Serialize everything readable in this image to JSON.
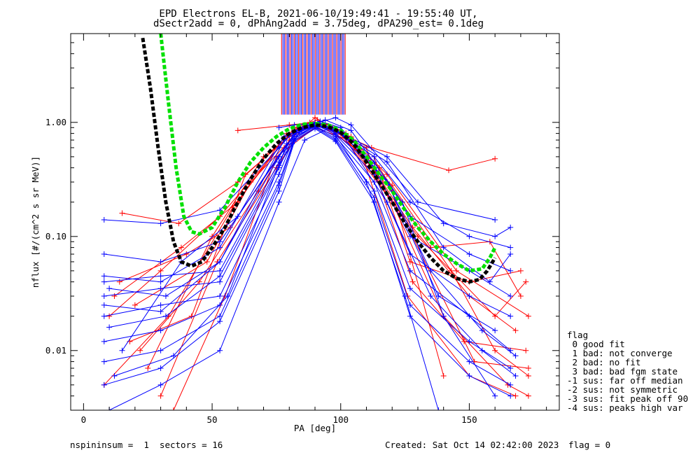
{
  "header": {
    "title_line1": "EPD Electrons EL-B, 2021-06-10/19:49:41 - 19:55:40 UT,",
    "title_line2": "dSectr2add = 0, dPhAng2add = 3.75deg, dPA290_est=   0.1deg"
  },
  "footer": {
    "left": "nspininsum =  1  sectors = 16",
    "center": "Created: Sat Oct 14 02:42:00 2023",
    "right": "flag = 0"
  },
  "flag_legend": {
    "title": "flag",
    "items": [
      " 0 good fit",
      " 1 bad: not converge",
      " 2 bad: no fit",
      " 3 bad: bad fgm state",
      "-1 sus: far off median",
      "-2 sus: not symmetric",
      "-3 sus: fit peak off 90",
      "-4 sus: peaks high var"
    ]
  },
  "chart_data": {
    "type": "line",
    "title": "EPD Electrons EL-B, 2021-06-10/19:49:41 - 19:55:40 UT, dSectr2add = 0, dPhAng2add = 3.75deg, dPA290_est=   0.1deg",
    "xlabel": "PA [deg]",
    "ylabel": "nflux [#/(cm^2 s sr MeV)]",
    "xlim": [
      -5,
      185
    ],
    "ylim": [
      0.003,
      6
    ],
    "yscale": "log",
    "xticks": [
      0,
      50,
      100,
      150
    ],
    "xtick_labels": [
      "0",
      "50",
      "100",
      "150"
    ],
    "yticks": [
      0.01,
      0.1,
      1.0
    ],
    "ytick_labels": [
      "0.01",
      "0.10",
      "1.00"
    ],
    "grid": false,
    "marker": "+",
    "colors": {
      "red": "#ff0000",
      "blue": "#0000ff",
      "green": "#00e000",
      "black": "#000000"
    },
    "series": [
      {
        "color": "red",
        "x": [
          15,
          37,
          60,
          83,
          90,
          97,
          120,
          143,
          160,
          173
        ],
        "y": [
          0.16,
          0.13,
          0.3,
          0.88,
          0.98,
          0.9,
          0.28,
          0.05,
          0.01,
          0.006
        ]
      },
      {
        "color": "red",
        "x": [
          10,
          30,
          53,
          76,
          82,
          90,
          98,
          113,
          127,
          150,
          170
        ],
        "y": [
          0.02,
          0.05,
          0.15,
          0.6,
          0.85,
          0.95,
          0.85,
          0.5,
          0.06,
          0.04,
          0.05
        ]
      },
      {
        "color": "red",
        "x": [
          22,
          45,
          68,
          80,
          90,
          105,
          128,
          150,
          168
        ],
        "y": [
          0.01,
          0.04,
          0.25,
          0.7,
          1.1,
          0.7,
          0.12,
          0.03,
          0.015
        ]
      },
      {
        "color": "red",
        "x": [
          30,
          52,
          75,
          85,
          90,
          100,
          120,
          140,
          165,
          173
        ],
        "y": [
          0.004,
          0.06,
          0.4,
          0.9,
          0.97,
          0.8,
          0.2,
          0.02,
          0.005,
          0.004
        ]
      },
      {
        "color": "red",
        "x": [
          12,
          38,
          60,
          79,
          92,
          110,
          128,
          148,
          172
        ],
        "y": [
          0.03,
          0.08,
          0.2,
          0.8,
          0.95,
          0.6,
          0.04,
          0.012,
          0.01
        ]
      },
      {
        "color": "red",
        "x": [
          18,
          42,
          63,
          80,
          88,
          104,
          124,
          152,
          173
        ],
        "y": [
          0.012,
          0.02,
          0.35,
          0.75,
          1.0,
          0.75,
          0.15,
          0.008,
          0.007
        ]
      },
      {
        "color": "red",
        "x": [
          25,
          50,
          70,
          86,
          95,
          115,
          135,
          158,
          170
        ],
        "y": [
          0.007,
          0.1,
          0.5,
          0.95,
          0.9,
          0.4,
          0.08,
          0.09,
          0.03
        ]
      },
      {
        "color": "red",
        "x": [
          8,
          33,
          58,
          82,
          91,
          100,
          130,
          160,
          172
        ],
        "y": [
          0.005,
          0.02,
          0.18,
          0.9,
          1.05,
          0.85,
          0.1,
          0.02,
          0.04
        ]
      },
      {
        "color": "red",
        "x": [
          35,
          55,
          75,
          90,
          103,
          120,
          140
        ],
        "y": [
          0.003,
          0.03,
          0.5,
          0.9,
          0.7,
          0.25,
          0.006
        ]
      },
      {
        "color": "red",
        "x": [
          20,
          48,
          65,
          84,
          90,
          102,
          118,
          145,
          173
        ],
        "y": [
          0.025,
          0.06,
          0.3,
          0.85,
          1.0,
          0.8,
          0.35,
          0.05,
          0.02
        ]
      },
      {
        "color": "red",
        "x": [
          60,
          80,
          90,
          112,
          142,
          160
        ],
        "y": [
          0.85,
          0.95,
          1.0,
          0.6,
          0.38,
          0.48
        ]
      },
      {
        "color": "red",
        "x": [
          14,
          40,
          57,
          78,
          92,
          108,
          126,
          150,
          168
        ],
        "y": [
          0.04,
          0.07,
          0.12,
          0.6,
          0.95,
          0.55,
          0.03,
          0.006,
          0.004
        ]
      },
      {
        "color": "blue",
        "x": [
          8,
          30,
          53,
          76,
          82,
          90,
          98,
          113,
          127,
          150,
          166
        ],
        "y": [
          0.14,
          0.13,
          0.17,
          0.6,
          0.85,
          0.95,
          0.85,
          0.5,
          0.2,
          0.1,
          0.08
        ]
      },
      {
        "color": "blue",
        "x": [
          8,
          30,
          53,
          76,
          82,
          90,
          98,
          113,
          127,
          150,
          166
        ],
        "y": [
          0.07,
          0.06,
          0.09,
          0.5,
          0.8,
          0.95,
          0.85,
          0.45,
          0.15,
          0.07,
          0.05
        ]
      },
      {
        "color": "blue",
        "x": [
          8,
          30,
          53,
          76,
          82,
          90,
          98,
          113,
          127,
          150,
          166
        ],
        "y": [
          0.04,
          0.045,
          0.05,
          0.45,
          0.82,
          1.0,
          0.8,
          0.4,
          0.1,
          0.05,
          0.03
        ]
      },
      {
        "color": "blue",
        "x": [
          8,
          30,
          53,
          76,
          82,
          90,
          98,
          113,
          127,
          150,
          166
        ],
        "y": [
          0.03,
          0.035,
          0.04,
          0.4,
          0.78,
          0.96,
          0.78,
          0.35,
          0.07,
          0.03,
          0.02
        ]
      },
      {
        "color": "blue",
        "x": [
          8,
          30,
          53,
          76,
          82,
          90,
          98,
          113,
          127,
          150,
          166
        ],
        "y": [
          0.02,
          0.025,
          0.03,
          0.35,
          0.75,
          0.93,
          0.75,
          0.3,
          0.05,
          0.02,
          0.01
        ]
      },
      {
        "color": "blue",
        "x": [
          8,
          30,
          53,
          76,
          82,
          90,
          98,
          113,
          127,
          150,
          166
        ],
        "y": [
          0.012,
          0.015,
          0.025,
          0.3,
          0.72,
          0.92,
          0.72,
          0.25,
          0.035,
          0.012,
          0.007
        ]
      },
      {
        "color": "blue",
        "x": [
          8,
          30,
          53,
          76,
          82,
          90,
          98,
          113,
          127,
          150,
          166
        ],
        "y": [
          0.008,
          0.01,
          0.02,
          0.28,
          0.7,
          0.9,
          0.7,
          0.22,
          0.025,
          0.008,
          0.005
        ]
      },
      {
        "color": "blue",
        "x": [
          8,
          30,
          53,
          76,
          82,
          90,
          98,
          113,
          127,
          150,
          166
        ],
        "y": [
          0.005,
          0.007,
          0.018,
          0.25,
          0.68,
          0.88,
          0.68,
          0.2,
          0.02,
          0.006,
          0.004
        ]
      },
      {
        "color": "blue",
        "x": [
          10,
          32,
          53,
          76,
          84,
          92,
          100,
          118,
          135,
          155,
          168
        ],
        "y": [
          0.035,
          0.03,
          0.06,
          0.5,
          0.9,
          1.02,
          0.9,
          0.3,
          0.05,
          0.015,
          0.009
        ]
      },
      {
        "color": "blue",
        "x": [
          10,
          32,
          53,
          76,
          84,
          92,
          100,
          118,
          135,
          155,
          168
        ],
        "y": [
          0.016,
          0.02,
          0.045,
          0.42,
          0.82,
          0.98,
          0.82,
          0.2,
          0.03,
          0.01,
          0.006
        ]
      },
      {
        "color": "blue",
        "x": [
          12,
          35,
          56,
          78,
          86,
          94,
          104,
          124,
          140,
          160
        ],
        "y": [
          0.006,
          0.009,
          0.03,
          0.55,
          0.92,
          1.05,
          0.85,
          0.2,
          0.02,
          0.004
        ]
      },
      {
        "color": "blue",
        "x": [
          10,
          30,
          53,
          76,
          86,
          96,
          110,
          125,
          138
        ],
        "y": [
          0.003,
          0.005,
          0.01,
          0.2,
          0.7,
          0.9,
          0.3,
          0.03,
          0.003
        ]
      },
      {
        "color": "blue",
        "x": [
          8,
          30,
          53,
          78,
          88,
          96,
          118,
          140,
          160,
          166
        ],
        "y": [
          0.045,
          0.04,
          0.08,
          0.75,
          0.95,
          0.9,
          0.5,
          0.13,
          0.1,
          0.12
        ]
      },
      {
        "color": "blue",
        "x": [
          8,
          30,
          53,
          78,
          88,
          96,
          118,
          140,
          158,
          166
        ],
        "y": [
          0.025,
          0.022,
          0.06,
          0.7,
          0.95,
          0.92,
          0.45,
          0.08,
          0.04,
          0.07
        ]
      },
      {
        "color": "blue",
        "x": [
          76,
          82,
          90,
          98,
          104,
          130,
          160
        ],
        "y": [
          0.9,
          0.95,
          0.98,
          1.1,
          0.95,
          0.2,
          0.14
        ]
      },
      {
        "color": "blue",
        "x": [
          15,
          38,
          60,
          79,
          90,
          101,
          118,
          138,
          160
        ],
        "y": [
          0.01,
          0.06,
          0.15,
          0.65,
          0.95,
          0.78,
          0.3,
          0.03,
          0.015
        ]
      }
    ],
    "vertical_lines": {
      "color_mix": [
        "blue",
        "red"
      ],
      "x_range": [
        77,
        102
      ],
      "y_range": [
        1.17,
        6
      ]
    },
    "overlay_series": [
      {
        "color": "green",
        "style": "dashed",
        "x": [
          30,
          33,
          36,
          39,
          42,
          45,
          50,
          55,
          60,
          65,
          70,
          75,
          80,
          85,
          90,
          95,
          100,
          105,
          110,
          115,
          120,
          125,
          130,
          135,
          140,
          145,
          150,
          155,
          158,
          160
        ],
        "y": [
          6,
          1.5,
          0.4,
          0.15,
          0.11,
          0.105,
          0.12,
          0.18,
          0.3,
          0.45,
          0.6,
          0.75,
          0.88,
          0.96,
          0.98,
          0.95,
          0.85,
          0.7,
          0.5,
          0.35,
          0.25,
          0.17,
          0.12,
          0.09,
          0.07,
          0.058,
          0.05,
          0.052,
          0.065,
          0.08
        ]
      },
      {
        "color": "black",
        "style": "dashed",
        "x": [
          23,
          26,
          29,
          32,
          35,
          38,
          42,
          46,
          50,
          55,
          60,
          65,
          70,
          75,
          80,
          85,
          90,
          95,
          100,
          105,
          110,
          115,
          120,
          125,
          130,
          135,
          140,
          145,
          150,
          154,
          157,
          160
        ],
        "y": [
          5.5,
          2.0,
          0.6,
          0.2,
          0.09,
          0.06,
          0.055,
          0.06,
          0.08,
          0.12,
          0.2,
          0.32,
          0.48,
          0.65,
          0.8,
          0.9,
          0.95,
          0.92,
          0.82,
          0.65,
          0.45,
          0.3,
          0.2,
          0.13,
          0.09,
          0.065,
          0.05,
          0.043,
          0.04,
          0.042,
          0.05,
          0.065
        ]
      }
    ]
  }
}
